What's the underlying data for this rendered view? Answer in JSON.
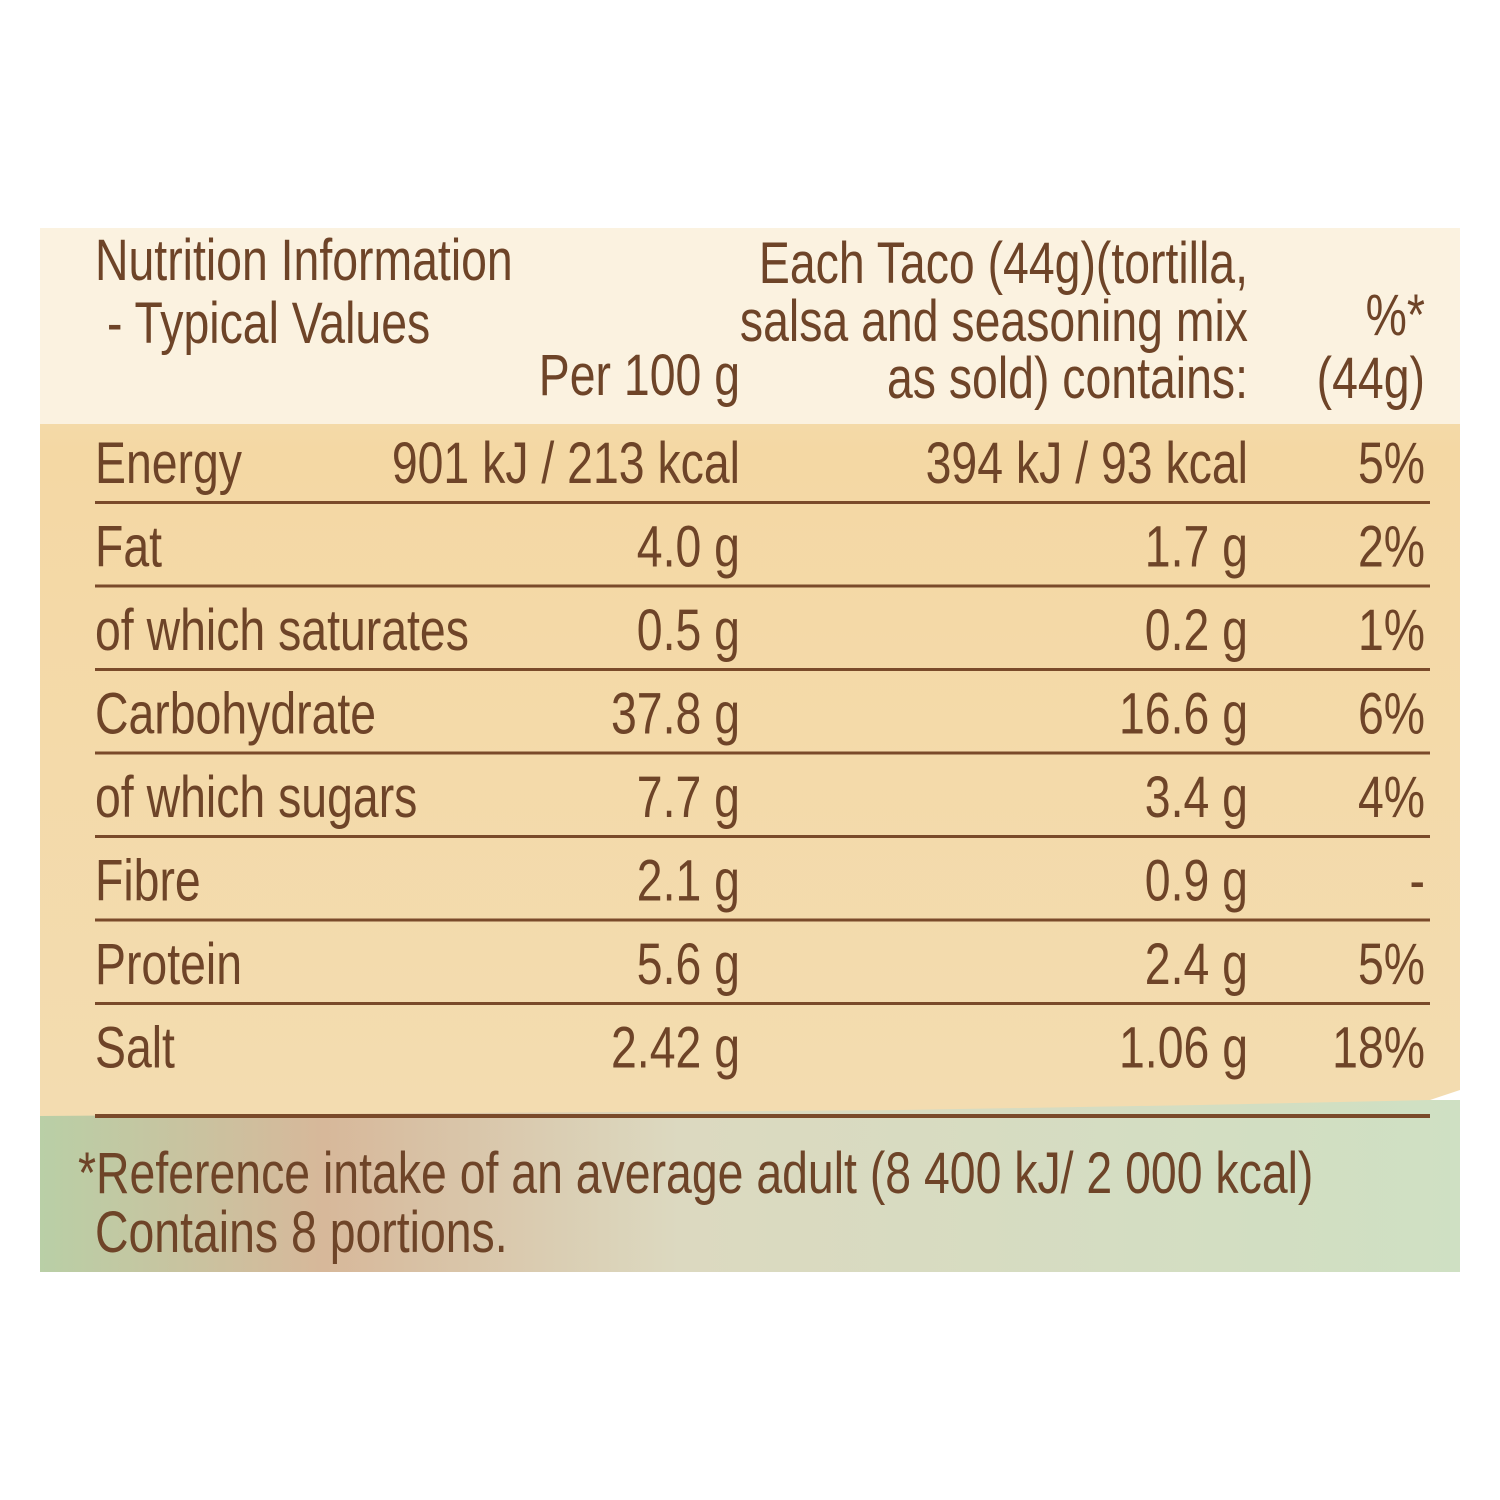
{
  "table": {
    "header": [
      [
        "Nutrition Information",
        "- Typical Values"
      ],
      [
        "Per 100 g"
      ],
      [
        "Each Taco (44g)(tortilla,",
        "salsa and seasoning mix",
        "as sold) contains:"
      ],
      [
        "%*",
        "(44g)"
      ]
    ],
    "rows": [
      [
        "Energy",
        "901 kJ / 213 kcal",
        "394 kJ / 93 kcal",
        "5%"
      ],
      [
        "Fat",
        "4.0 g",
        "1.7 g",
        "2%"
      ],
      [
        "of which saturates",
        "0.5 g",
        "0.2 g",
        "1%"
      ],
      [
        "Carbohydrate",
        "37.8 g",
        "16.6 g",
        "6%"
      ],
      [
        "of which sugars",
        "7.7 g",
        "3.4 g",
        "4%"
      ],
      [
        "Fibre",
        "2.1 g",
        "0.9 g",
        "-"
      ],
      [
        "Protein",
        "5.6 g",
        "2.4 g",
        "5%"
      ],
      [
        "Salt",
        "2.42 g",
        "1.06 g",
        "18%"
      ]
    ]
  },
  "footnote": [
    "*Reference intake of an average adult (8 400 kJ/ 2 000 kcal)",
    "Contains 8 portions."
  ]
}
